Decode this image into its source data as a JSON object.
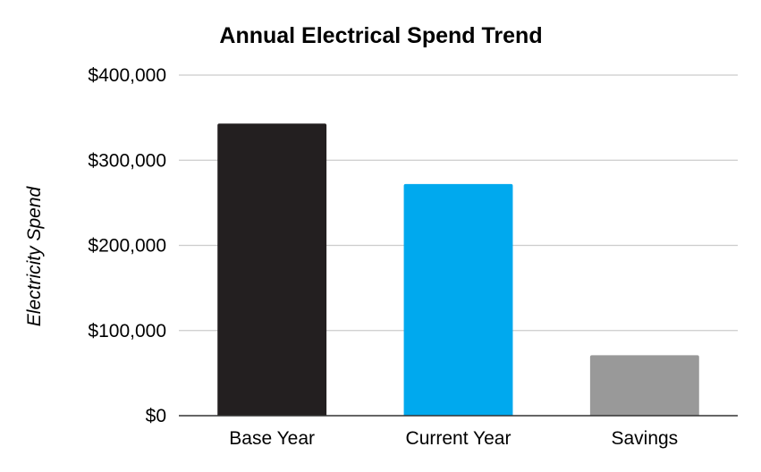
{
  "chart_data": {
    "type": "bar",
    "title": "Annual Electrical Spend Trend",
    "xlabel": "",
    "ylabel": "Electricity Spend",
    "categories": [
      "Base Year",
      "Current Year",
      "Savings"
    ],
    "values": [
      343000,
      272000,
      71000
    ],
    "colors": [
      "#231f20",
      "#00a9ee",
      "#999999"
    ],
    "ylim": [
      0,
      400000
    ],
    "yticks": [
      0,
      100000,
      200000,
      300000,
      400000
    ],
    "ytick_labels": [
      "$0",
      "$100,000",
      "$200,000",
      "$300,000",
      "$400,000"
    ],
    "grid": true,
    "legend": "none"
  }
}
